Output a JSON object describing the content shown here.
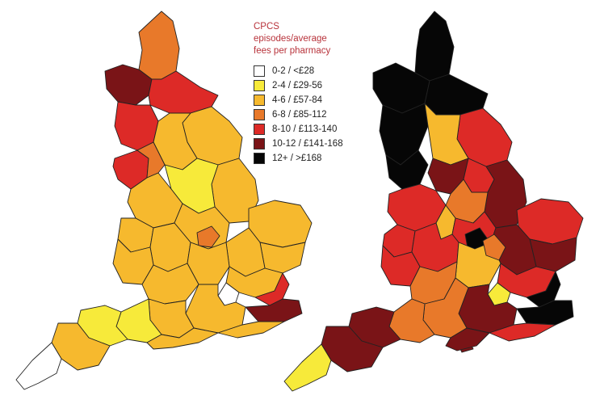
{
  "legend": {
    "title_line1": "CPCS episodes/average",
    "title_line2": "fees per pharmacy",
    "items": [
      {
        "label": "0-2 / <£28",
        "color": "#ffffff"
      },
      {
        "label": "2-4 / £29-56",
        "color": "#f7ea3a"
      },
      {
        "label": "4-6 / £57-84",
        "color": "#f6b92e"
      },
      {
        "label": "6-8 / £85-112",
        "color": "#e8792a"
      },
      {
        "label": "8-10 / £113-140",
        "color": "#dd2a27"
      },
      {
        "label": "10-12 / £141-168",
        "color": "#7a1417"
      },
      {
        "label": "12+ / >£168",
        "color": "#060606"
      }
    ]
  }
}
